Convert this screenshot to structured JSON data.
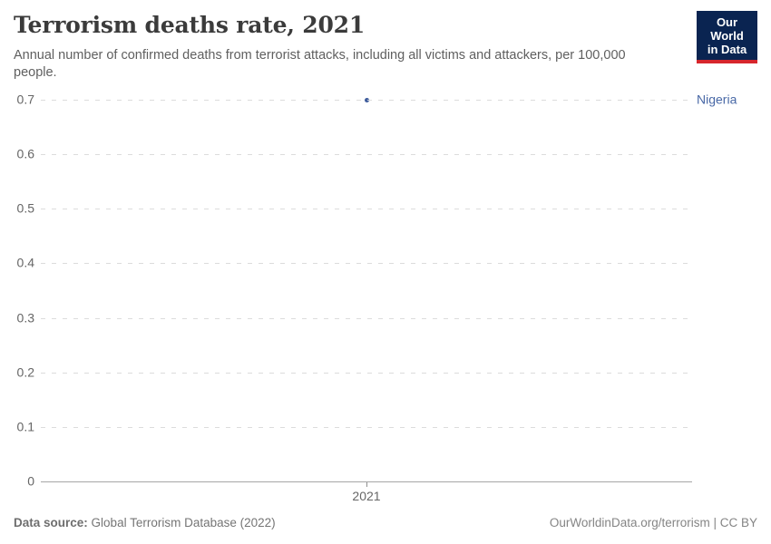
{
  "header": {
    "title": "Terrorism deaths rate, 2021",
    "subtitle": "Annual number of confirmed deaths from terrorist attacks, including all victims and attackers, per 100,000 people.",
    "logo": {
      "line1": "Our World",
      "line2": "in Data"
    }
  },
  "chart_data": {
    "type": "scatter",
    "title": "Terrorism deaths rate, 2021",
    "xlabel": "",
    "ylabel": "",
    "ylim": [
      0,
      0.7
    ],
    "yticks": [
      0,
      0.1,
      0.2,
      0.3,
      0.4,
      0.5,
      0.6,
      0.7
    ],
    "ytick_labels": [
      "0",
      "0.1",
      "0.2",
      "0.3",
      "0.4",
      "0.5",
      "0.6",
      "0.7"
    ],
    "x_ticks": [
      "2021"
    ],
    "grid": true,
    "gridline_style": "dashed",
    "legend_position": "right-inline-label",
    "series": [
      {
        "name": "Nigeria",
        "x": "2021",
        "value": 0.7,
        "point_color": "#3e5c9c",
        "label_color": "#4868a6"
      }
    ]
  },
  "footer": {
    "datasource_label": "Data source:",
    "datasource_value": "Global Terrorism Database (2022)",
    "attribution": "OurWorldinData.org/terrorism | CC BY"
  },
  "colors": {
    "title": "#3b3b3b",
    "subtitle": "#5f5f5f",
    "gridline": "#dcdcdc",
    "axis": "#a6a6a6",
    "tick_text": "#666666",
    "logo_background": "#0a2451",
    "logo_stripe": "#d7262c"
  }
}
